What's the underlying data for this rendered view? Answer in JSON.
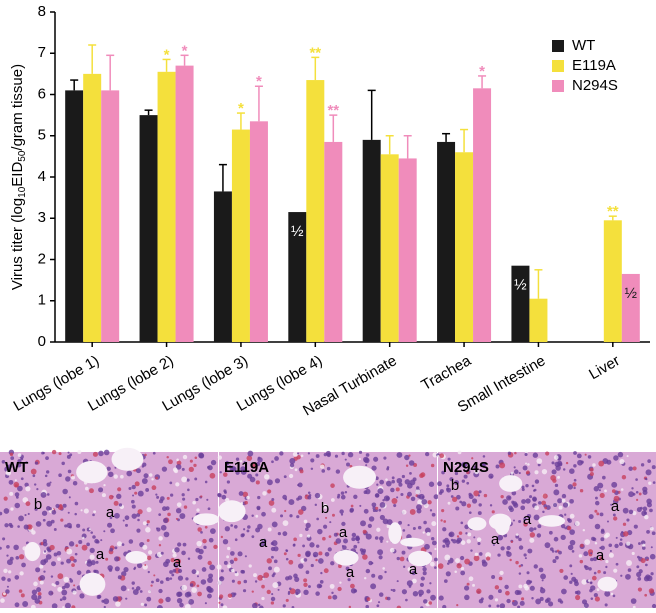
{
  "chart_data": {
    "type": "bar",
    "y_label": {
      "prefix": "Virus titer (log",
      "sub1": "10",
      "mid": "EID",
      "sub2": "50",
      "suffix": "/gram tissue)"
    },
    "categories": [
      "Lungs (lobe 1)",
      "Lungs (lobe 2)",
      "Lungs (lobe 3)",
      "Lungs (lobe 4)",
      "Nasal Turbinate",
      "Trachea",
      "Small Intestine",
      "Liver"
    ],
    "series": [
      {
        "name": "WT",
        "color": "#1a1a1a",
        "values": [
          6.1,
          5.5,
          3.65,
          3.15,
          4.9,
          4.85,
          1.85,
          null
        ],
        "errors": [
          0.25,
          0.12,
          0.65,
          null,
          1.2,
          0.2,
          null,
          null
        ],
        "significance": [
          null,
          null,
          null,
          null,
          null,
          null,
          null,
          null
        ],
        "notes": [
          null,
          null,
          null,
          "½",
          null,
          null,
          "½",
          null
        ]
      },
      {
        "name": "E119A",
        "color": "#f4e03c",
        "values": [
          6.5,
          6.55,
          5.15,
          6.35,
          4.55,
          4.6,
          1.05,
          2.95
        ],
        "errors": [
          0.7,
          0.3,
          0.4,
          0.55,
          0.45,
          0.55,
          0.7,
          0.1
        ],
        "significance": [
          null,
          "*",
          "*",
          "**",
          null,
          null,
          null,
          "**"
        ],
        "notes": [
          null,
          null,
          null,
          null,
          null,
          null,
          null,
          null
        ]
      },
      {
        "name": "N294S",
        "color": "#f08cbb",
        "values": [
          6.1,
          6.7,
          5.35,
          4.85,
          4.45,
          6.15,
          null,
          1.65
        ],
        "errors": [
          0.85,
          0.25,
          0.85,
          0.65,
          0.55,
          0.3,
          null,
          null
        ],
        "significance": [
          null,
          "*",
          "*",
          "**",
          null,
          "*",
          null,
          null
        ],
        "notes": [
          null,
          null,
          null,
          null,
          null,
          null,
          null,
          "½"
        ]
      }
    ],
    "ylim": [
      0,
      8
    ],
    "yticks": [
      0,
      1,
      2,
      3,
      4,
      5,
      6,
      7,
      8
    ],
    "legend": "top-right"
  },
  "panels": [
    {
      "title": "WT",
      "labels": [
        "b",
        "a",
        "a",
        "a"
      ]
    },
    {
      "title": "E119A",
      "labels": [
        "b",
        "a",
        "a",
        "a",
        "a"
      ]
    },
    {
      "title": "N294S",
      "labels": [
        "b",
        "a",
        "a",
        "a",
        "a"
      ]
    }
  ]
}
